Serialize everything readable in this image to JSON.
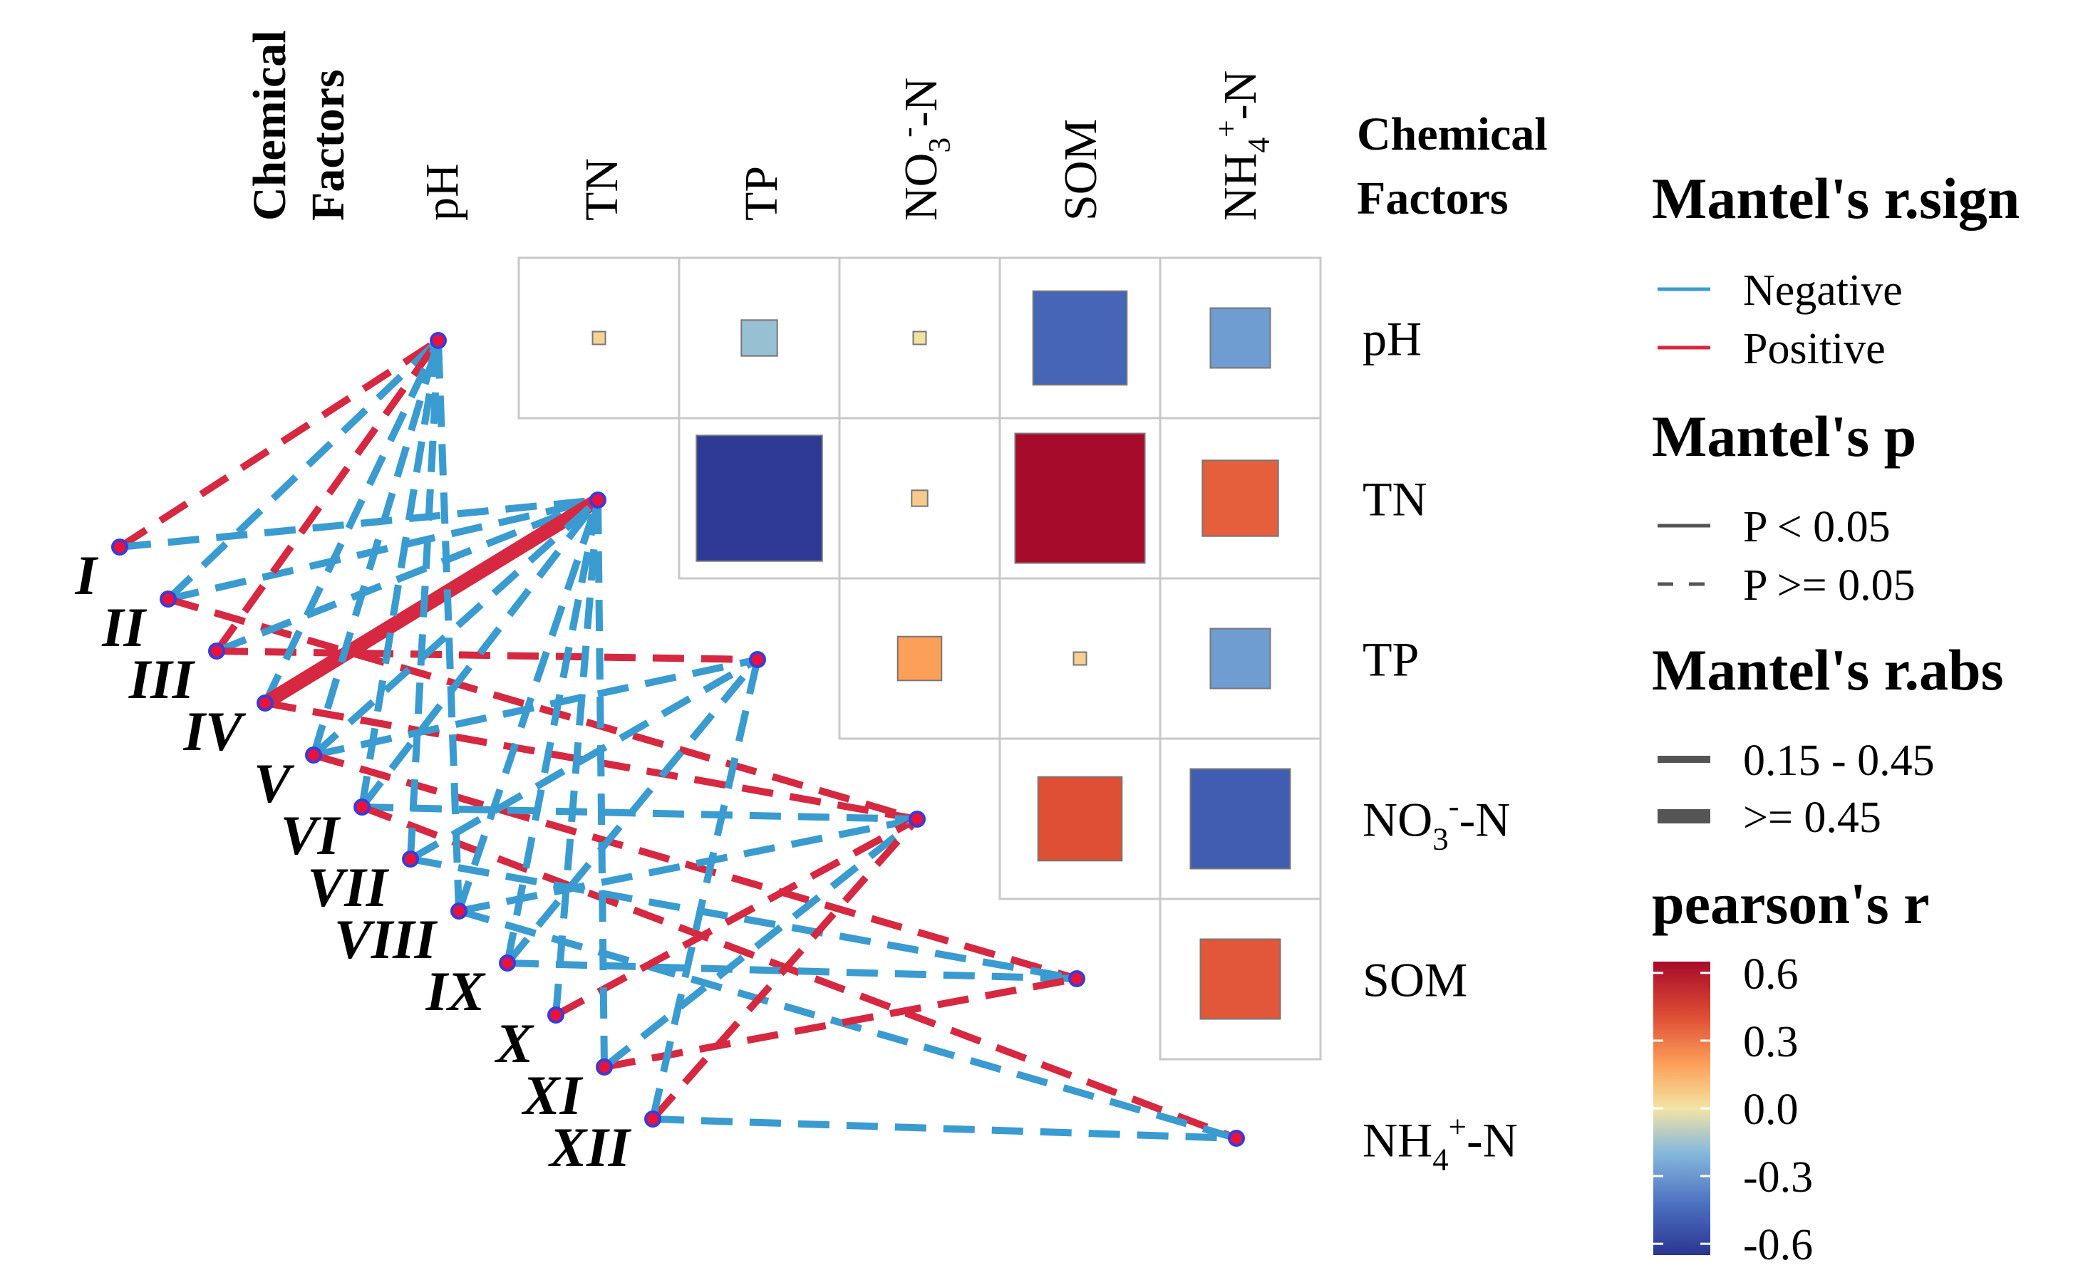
{
  "chart_data": {
    "type": "heatmap",
    "variables": [
      "pH",
      "TN",
      "TP",
      "NO3--N",
      "SOM",
      "NH4+-N"
    ],
    "column_labels": [
      {
        "base": "pH"
      },
      {
        "base": "TN"
      },
      {
        "base": "TP"
      },
      {
        "base": "NO",
        "sub": "3",
        "sup": "-",
        "tail": "-N"
      },
      {
        "base": "SOM"
      },
      {
        "base": "NH",
        "sub": "4",
        "sup": "+",
        "tail": "-N"
      }
    ],
    "row_labels": [
      {
        "base": "pH"
      },
      {
        "base": "TN"
      },
      {
        "base": "TP"
      },
      {
        "base": "NO",
        "sub": "3",
        "sup": "-",
        "tail": "-N"
      },
      {
        "base": "SOM"
      },
      {
        "base": "NH",
        "sub": "4",
        "sup": "+",
        "tail": "-N"
      }
    ],
    "group_label_top": [
      "Chemical",
      "Factors"
    ],
    "group_label_right": [
      "Chemical",
      "Factors"
    ],
    "correlations": [
      {
        "row": "pH",
        "col": "TN",
        "r": 0.05
      },
      {
        "row": "pH",
        "col": "TP",
        "r": -0.18
      },
      {
        "row": "pH",
        "col": "NO3--N",
        "r": 0.01
      },
      {
        "row": "pH",
        "col": "SOM",
        "r": -0.47
      },
      {
        "row": "pH",
        "col": "NH4+-N",
        "r": -0.3
      },
      {
        "row": "TN",
        "col": "TP",
        "r": -0.63
      },
      {
        "row": "TN",
        "col": "NO3--N",
        "r": 0.08
      },
      {
        "row": "TN",
        "col": "SOM",
        "r": 0.65
      },
      {
        "row": "TN",
        "col": "NH4+-N",
        "r": 0.38
      },
      {
        "row": "TP",
        "col": "NO3--N",
        "r": 0.22
      },
      {
        "row": "TP",
        "col": "SOM",
        "r": 0.06
      },
      {
        "row": "TP",
        "col": "NH4+-N",
        "r": -0.3
      },
      {
        "row": "NO3--N",
        "col": "SOM",
        "r": 0.42
      },
      {
        "row": "NO3--N",
        "col": "NH4+-N",
        "r": -0.5
      },
      {
        "row": "SOM",
        "col": "NH4+-N",
        "r": 0.4
      }
    ],
    "groups": [
      "I",
      "II",
      "III",
      "IV",
      "V",
      "VI",
      "VII",
      "VIII",
      "IX",
      "X",
      "XI",
      "XII"
    ],
    "links": [
      {
        "group": "I",
        "target": "pH",
        "sign": "Positive",
        "p": "P >= 0.05",
        "abs": "0.15 - 0.45"
      },
      {
        "group": "I",
        "target": "TN",
        "sign": "Negative",
        "p": "P >= 0.05",
        "abs": "0.15 - 0.45"
      },
      {
        "group": "II",
        "target": "pH",
        "sign": "Negative",
        "p": "P >= 0.05",
        "abs": "0.15 - 0.45"
      },
      {
        "group": "II",
        "target": "TN",
        "sign": "Negative",
        "p": "P >= 0.05",
        "abs": "0.15 - 0.45"
      },
      {
        "group": "II",
        "target": "NO3--N",
        "sign": "Positive",
        "p": "P >= 0.05",
        "abs": "0.15 - 0.45"
      },
      {
        "group": "III",
        "target": "pH",
        "sign": "Positive",
        "p": "P >= 0.05",
        "abs": "0.15 - 0.45"
      },
      {
        "group": "III",
        "target": "TN",
        "sign": "Negative",
        "p": "P >= 0.05",
        "abs": "0.15 - 0.45"
      },
      {
        "group": "III",
        "target": "TP",
        "sign": "Positive",
        "p": "P >= 0.05",
        "abs": "0.15 - 0.45"
      },
      {
        "group": "IV",
        "target": "pH",
        "sign": "Negative",
        "p": "P >= 0.05",
        "abs": "0.15 - 0.45"
      },
      {
        "group": "IV",
        "target": "TN",
        "sign": "Positive",
        "p": "P < 0.05",
        "abs": ">= 0.45"
      },
      {
        "group": "IV",
        "target": "NO3--N",
        "sign": "Positive",
        "p": "P >= 0.05",
        "abs": "0.15 - 0.45"
      },
      {
        "group": "V",
        "target": "pH",
        "sign": "Negative",
        "p": "P >= 0.05",
        "abs": "0.15 - 0.45"
      },
      {
        "group": "V",
        "target": "TN",
        "sign": "Negative",
        "p": "P >= 0.05",
        "abs": "0.15 - 0.45"
      },
      {
        "group": "V",
        "target": "TP",
        "sign": "Negative",
        "p": "P >= 0.05",
        "abs": "0.15 - 0.45"
      },
      {
        "group": "V",
        "target": "SOM",
        "sign": "Positive",
        "p": "P >= 0.05",
        "abs": "0.15 - 0.45"
      },
      {
        "group": "VI",
        "target": "pH",
        "sign": "Negative",
        "p": "P >= 0.05",
        "abs": "0.15 - 0.45"
      },
      {
        "group": "VI",
        "target": "TN",
        "sign": "Negative",
        "p": "P >= 0.05",
        "abs": "0.15 - 0.45"
      },
      {
        "group": "VI",
        "target": "NO3--N",
        "sign": "Negative",
        "p": "P >= 0.05",
        "abs": "0.15 - 0.45"
      },
      {
        "group": "VI",
        "target": "NH4+-N",
        "sign": "Positive",
        "p": "P >= 0.05",
        "abs": "0.15 - 0.45"
      },
      {
        "group": "VII",
        "target": "pH",
        "sign": "Negative",
        "p": "P >= 0.05",
        "abs": "0.15 - 0.45"
      },
      {
        "group": "VII",
        "target": "TP",
        "sign": "Negative",
        "p": "P >= 0.05",
        "abs": "0.15 - 0.45"
      },
      {
        "group": "VII",
        "target": "SOM",
        "sign": "Negative",
        "p": "P >= 0.05",
        "abs": "0.15 - 0.45"
      },
      {
        "group": "VIII",
        "target": "pH",
        "sign": "Negative",
        "p": "P >= 0.05",
        "abs": "0.15 - 0.45"
      },
      {
        "group": "VIII",
        "target": "TN",
        "sign": "Negative",
        "p": "P >= 0.05",
        "abs": "0.15 - 0.45"
      },
      {
        "group": "VIII",
        "target": "NO3--N",
        "sign": "Negative",
        "p": "P >= 0.05",
        "abs": "0.15 - 0.45"
      },
      {
        "group": "VIII",
        "target": "NH4+-N",
        "sign": "Negative",
        "p": "P >= 0.05",
        "abs": "0.15 - 0.45"
      },
      {
        "group": "IX",
        "target": "TN",
        "sign": "Negative",
        "p": "P >= 0.05",
        "abs": "0.15 - 0.45"
      },
      {
        "group": "IX",
        "target": "TP",
        "sign": "Negative",
        "p": "P >= 0.05",
        "abs": "0.15 - 0.45"
      },
      {
        "group": "IX",
        "target": "SOM",
        "sign": "Negative",
        "p": "P >= 0.05",
        "abs": "0.15 - 0.45"
      },
      {
        "group": "X",
        "target": "TN",
        "sign": "Negative",
        "p": "P >= 0.05",
        "abs": "0.15 - 0.45"
      },
      {
        "group": "X",
        "target": "NO3--N",
        "sign": "Positive",
        "p": "P >= 0.05",
        "abs": "0.15 - 0.45"
      },
      {
        "group": "XI",
        "target": "TN",
        "sign": "Negative",
        "p": "P >= 0.05",
        "abs": "0.15 - 0.45"
      },
      {
        "group": "XI",
        "target": "SOM",
        "sign": "Positive",
        "p": "P >= 0.05",
        "abs": "0.15 - 0.45"
      },
      {
        "group": "XI",
        "target": "NO3--N",
        "sign": "Negative",
        "p": "P >= 0.05",
        "abs": "0.15 - 0.45"
      },
      {
        "group": "XII",
        "target": "NO3--N",
        "sign": "Positive",
        "p": "P >= 0.05",
        "abs": "0.15 - 0.45"
      },
      {
        "group": "XII",
        "target": "NH4+-N",
        "sign": "Negative",
        "p": "P >= 0.05",
        "abs": "0.15 - 0.45"
      },
      {
        "group": "XII",
        "target": "TP",
        "sign": "Negative",
        "p": "P >= 0.05",
        "abs": "0.15 - 0.45"
      }
    ],
    "legend": {
      "sign": {
        "title": "Mantel's r.sign",
        "items": [
          "Negative",
          "Positive"
        ]
      },
      "p": {
        "title": "Mantel's p",
        "items": [
          "P < 0.05",
          "P >= 0.05"
        ]
      },
      "abs": {
        "title": "Mantel's r.abs",
        "items": [
          "0.15 - 0.45",
          ">= 0.45"
        ]
      },
      "color": {
        "title": "pearson's r",
        "ticks": [
          "0.6",
          "0.3",
          "0.0",
          "-0.3",
          "-0.6"
        ],
        "range": [
          -0.65,
          0.65
        ]
      }
    },
    "colors": {
      "negative_link": "#3a9bd0",
      "positive_link": "#d62840",
      "node_fill": "#e8123a",
      "node_stroke": "#3b3bdc",
      "grid": "#c8c8c8",
      "scale": [
        "#2b3591",
        "#4b6fbf",
        "#86b9dc",
        "#f3e4a4",
        "#fca05a",
        "#dd4a33",
        "#a70b2b"
      ]
    }
  }
}
